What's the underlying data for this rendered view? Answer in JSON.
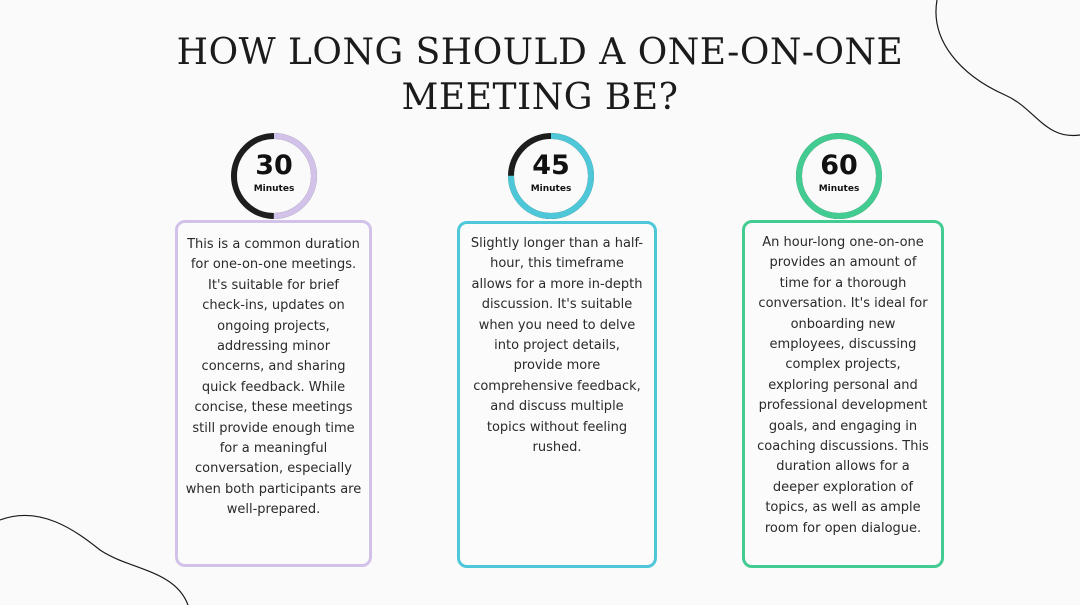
{
  "title": {
    "line1": "HOW LONG SHOULD A ONE-ON-ONE",
    "line2": "MEETING BE?"
  },
  "options": [
    {
      "value": "30",
      "unit": "Minutes",
      "fill_fraction": 0.5,
      "color": "#d2c2ea",
      "text": "This is a common duration for one-on-one meetings. It's suitable for brief check-ins, updates on ongoing projects, addressing minor concerns, and sharing quick feedback. While concise, these meetings still provide enough time for a meaningful conversation, especially when both participants are well-prepared."
    },
    {
      "value": "45",
      "unit": "Minutes",
      "fill_fraction": 0.75,
      "color": "#4ec8d8",
      "text": "Slightly longer than a half-hour, this timeframe allows for a more in-depth discussion. It's suitable when you need to delve into project details, provide more comprehensive feedback, and discuss multiple topics without feeling rushed."
    },
    {
      "value": "60",
      "unit": "Minutes",
      "fill_fraction": 1.0,
      "color": "#43cc92",
      "text": "An hour-long one-on-one provides an amount of time for a thorough conversation. It's ideal for onboarding new employees, discussing complex projects, exploring personal and professional development goals, and engaging in coaching discussions. This duration allows for a deeper exploration of topics, as well as ample room for open dialogue."
    }
  ],
  "ring_base_color": "#1d1d1d"
}
